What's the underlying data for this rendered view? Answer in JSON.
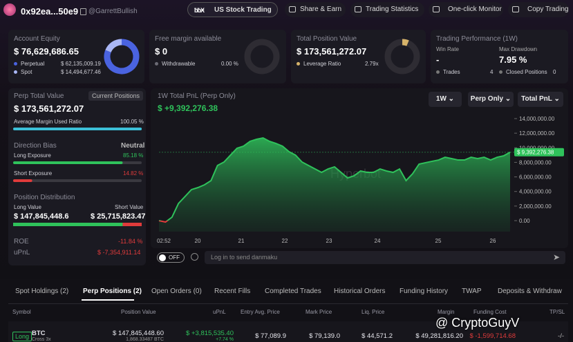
{
  "header": {
    "account": "0x92ea...50e9",
    "handle": "@GarrettBullish",
    "nav": [
      "US Stock Trading",
      "Share & Earn",
      "Trading Statistics",
      "One-click Monitor",
      "Copy Trading"
    ]
  },
  "cards": {
    "equity": {
      "title": "Account Equity",
      "value": "$ 76,629,686.65",
      "perpetual": {
        "label": "Perpetual",
        "amount": {
          "value": 62135009.19,
          "label": "$ 62,135,009.19"
        },
        "color": "#4a63e0"
      },
      "spot": {
        "label": "Spot",
        "amount": {
          "value": 14494677.46,
          "label": "$ 14,494,677.46"
        },
        "color": "#a9b6f5"
      }
    },
    "free_margin": {
      "title": "Free margin available",
      "value": "$ 0",
      "withdrawable_label": "Withdrawable",
      "withdrawable_value": "0.00 %"
    },
    "position_value": {
      "title": "Total Position Value",
      "value": "$ 173,561,272.07",
      "leverage_label": "Leverage Ratio",
      "leverage_value": "2.79x"
    },
    "performance": {
      "title": "Trading Performance (1W)",
      "win_rate_label": "Win Rate",
      "win_rate": "-",
      "max_drawdown_label": "Max Drawdown",
      "max_drawdown": "7.95 %",
      "trades_label": "Trades",
      "trades": 4,
      "closed_label": "Closed Positions",
      "closed": 0
    }
  },
  "perp_panel": {
    "title": "Perp Total Value",
    "button": "Current Positions",
    "value": "$ 173,561,272.07",
    "margin_ratio_label": "Average Margin Used Ratio",
    "margin_ratio": {
      "value": 100.05,
      "label": "100.05 %"
    },
    "bias_title": "Direction Bias",
    "bias": "Neutral",
    "long_exposure_label": "Long Exposure",
    "long_exposure": {
      "value": 85.18,
      "label": "85.18 %"
    },
    "short_exposure_label": "Short Exposure",
    "short_exposure": {
      "value": 14.82,
      "label": "14.82 %"
    },
    "distribution_title": "Position Distribution",
    "long_value_label": "Long Value",
    "short_value_label": "Short Value",
    "long_value": {
      "value": 147845448.6,
      "label": "$ 147,845,448.6"
    },
    "short_value": {
      "value": 25715823.47,
      "label": "$ 25,715,823.47"
    },
    "roe_label": "ROE",
    "roe": "-11.84 %",
    "upnl_label": "uPnL",
    "upnl": "$ -7,354,911.14"
  },
  "pnl_chart": {
    "type": "area",
    "title": "1W Total PnL (Perp Only)",
    "total": "$ +9,392,276.38",
    "controls": [
      "1W",
      "Perp Only",
      "Total PnL"
    ],
    "x_labels": [
      "02:52",
      "20",
      "21",
      "22",
      "23",
      "24",
      "25",
      "26"
    ],
    "values": [
      0,
      -190000,
      470000,
      2360000,
      3310000,
      4260000,
      4540000,
      4920000,
      5490000,
      7570000,
      8040000,
      8990000,
      9930000,
      10220000,
      10880000,
      11160000,
      11350000,
      10880000,
      10590000,
      10220000,
      9460000,
      8990000,
      8040000,
      7570000,
      7090000,
      6620000,
      7090000,
      7380000,
      6620000,
      5860000,
      6150000,
      6810000,
      6620000,
      6620000,
      7090000,
      6810000,
      6620000,
      7090000,
      5490000,
      6430000,
      7760000,
      7950000,
      8140000,
      8320000,
      8700000,
      8510000,
      8320000,
      8320000,
      8700000,
      8510000,
      8700000,
      8320000,
      8700000,
      8890000,
      9390000
    ],
    "ylim": [
      -1500000,
      14800000
    ],
    "yticks": [
      {
        "value": 0,
        "label": "0.00"
      },
      {
        "value": 2000000,
        "label": "2,000,000.00"
      },
      {
        "value": 4000000,
        "label": "4,000,000.00"
      },
      {
        "value": 6000000,
        "label": "6,000,000.00"
      },
      {
        "value": 8000000,
        "label": "8,000,000.00"
      },
      {
        "value": 10000000,
        "label": "10,000,000.00"
      },
      {
        "value": 12000000,
        "label": "12,000,000.00"
      },
      {
        "value": 14000000,
        "label": "14,000,000.00"
      }
    ],
    "last_label": "$ 9,392,276.38",
    "watermark": "Hyperbot",
    "color": "#2fc25b",
    "negative_color": "#e03b3b"
  },
  "danmaku": {
    "toggle": "OFF",
    "placeholder": "Log in to send danmaku"
  },
  "tabs": [
    "Spot Holdings (2)",
    "Perp Positions (2)",
    "Open Orders (0)",
    "Recent Fills",
    "Completed Trades",
    "Historical Orders",
    "Funding History",
    "TWAP",
    "Deposits & Withdraw"
  ],
  "table": {
    "headers": [
      "Symbol",
      "Position Value",
      "uPnL",
      "Entry Avg. Price",
      "Mark Price",
      "Liq. Price",
      "Margin",
      "Funding Cost",
      "TP/SL"
    ],
    "rows": [
      {
        "side": "Long",
        "symbol": "BTC",
        "mode": "Cross 3x",
        "position_value": "$ 147,845,448.60",
        "size": "1,868.33487 BTC",
        "upnl": "$ +3,815,535.40",
        "upnl_pct": "+7.74 %",
        "entry": "$ 77,089.9",
        "mark": "$ 79,139.0",
        "liq": "$ 44,571.2",
        "margin": "$ 49,281,816.20",
        "funding": "$ -1,599,714.68",
        "tpsl": "-/-"
      }
    ]
  },
  "watermark": "@ CryptoGuyV"
}
